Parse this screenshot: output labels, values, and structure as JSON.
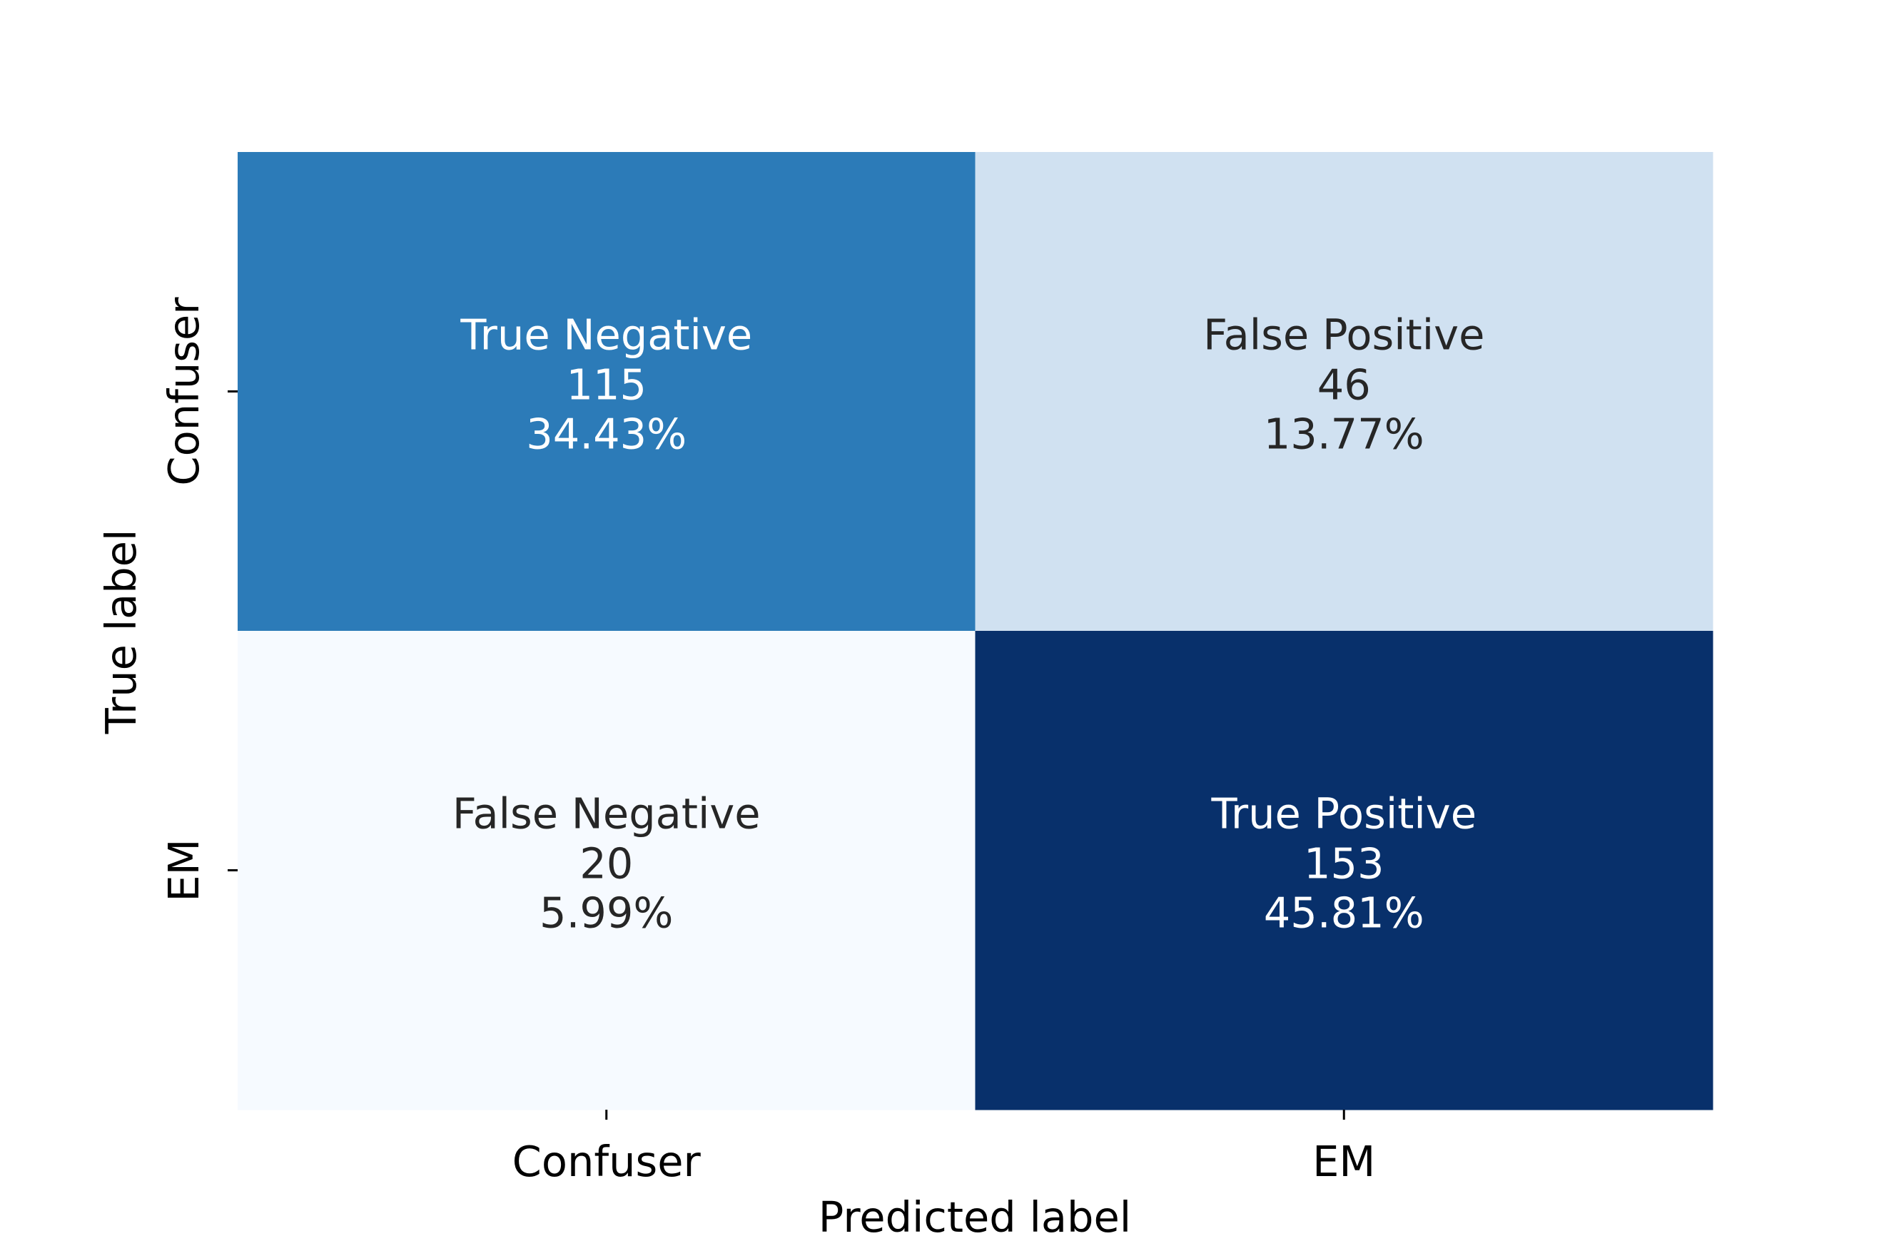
{
  "chart_data": {
    "type": "heatmap",
    "xlabel": "Predicted label",
    "ylabel": "True label",
    "x_tick_labels": [
      "Confuser",
      "EM"
    ],
    "y_tick_labels": [
      "Confuser",
      "EM"
    ],
    "cells": [
      [
        {
          "name": "True Negative",
          "count": "115",
          "percent": "34.43%",
          "value": 115,
          "color": "#2c7bb8",
          "text_color": "#ffffff"
        },
        {
          "name": "False Positive",
          "count": "46",
          "percent": "13.77%",
          "value": 46,
          "color": "#d0e1f1",
          "text_color": "#262626"
        }
      ],
      [
        {
          "name": "False Negative",
          "count": "20",
          "percent": "5.99%",
          "value": 20,
          "color": "#f6faff",
          "text_color": "#262626"
        },
        {
          "name": "True Positive",
          "count": "153",
          "percent": "45.81%",
          "value": 153,
          "color": "#08306b",
          "text_color": "#ffffff"
        }
      ]
    ],
    "colormap": "Blues",
    "colorbar": false,
    "grid": false
  }
}
